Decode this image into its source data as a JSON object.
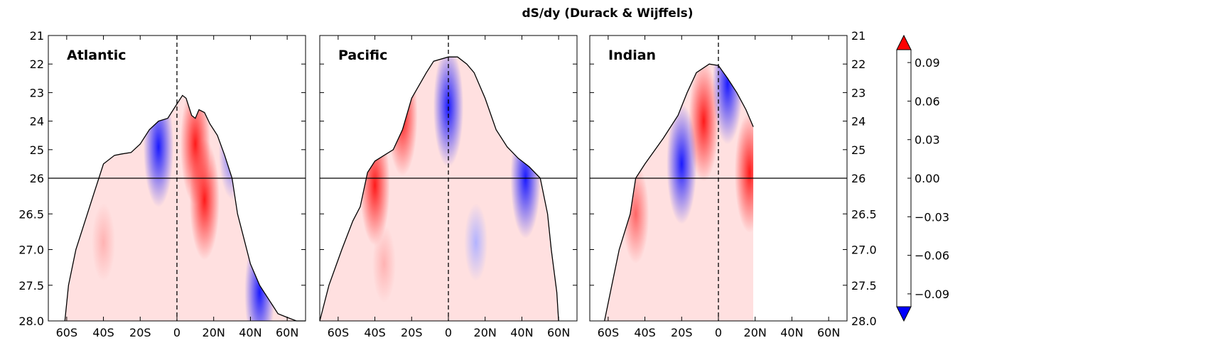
{
  "figure": {
    "title": "dS/dy (Durack & Wijffels)"
  },
  "chart_data": {
    "type": "heatmap",
    "title": "dS/dy (Durack & Wijffels)",
    "x_ticks": [
      "60S",
      "40S",
      "20S",
      "0",
      "20N",
      "40N",
      "60N"
    ],
    "x_tick_values": [
      -60,
      -40,
      -20,
      0,
      20,
      40,
      60
    ],
    "xlim": [
      -70,
      70
    ],
    "y_ticks": [
      "21",
      "22",
      "23",
      "24",
      "25",
      "26",
      "26.5",
      "27.0",
      "27.5",
      "28.0"
    ],
    "y_upper_range": [
      21,
      26
    ],
    "y_lower_range": [
      26,
      28
    ],
    "reference_line_y": 26,
    "reference_line_x": 0,
    "colorbar": {
      "ticks": [
        "0.09",
        "0.06",
        "0.03",
        "0.00",
        "−0.03",
        "−0.06",
        "−0.09"
      ],
      "tick_values": [
        0.09,
        0.06,
        0.03,
        0,
        -0.03,
        -0.06,
        -0.09
      ],
      "range": [
        -0.1,
        0.1
      ],
      "cmap": "bwr",
      "extend": "both"
    },
    "panels": [
      {
        "name": "Atlantic",
        "outcrop": [
          [
            -61,
            28.0
          ],
          [
            -59,
            27.5
          ],
          [
            -55,
            27.0
          ],
          [
            -50,
            26.6
          ],
          [
            -45,
            26.2
          ],
          [
            -40,
            25.5
          ],
          [
            -34,
            25.2
          ],
          [
            -30,
            25.15
          ],
          [
            -25,
            25.1
          ],
          [
            -20,
            24.8
          ],
          [
            -15,
            24.3
          ],
          [
            -10,
            24.0
          ],
          [
            -5,
            23.9
          ],
          [
            -1,
            23.5
          ],
          [
            3,
            23.1
          ],
          [
            5,
            23.2
          ],
          [
            8,
            23.8
          ],
          [
            10,
            23.9
          ],
          [
            12,
            23.6
          ],
          [
            15,
            23.7
          ],
          [
            18,
            24.1
          ],
          [
            22,
            24.5
          ],
          [
            26,
            25.2
          ],
          [
            30,
            26.0
          ],
          [
            33,
            26.5
          ],
          [
            36,
            26.8
          ],
          [
            40,
            27.2
          ],
          [
            45,
            27.5
          ],
          [
            50,
            27.7
          ],
          [
            55,
            27.9
          ],
          [
            60,
            27.95
          ],
          [
            65,
            28.0
          ],
          [
            70,
            28.0
          ]
        ],
        "features": [
          {
            "x": 10,
            "y": 24.8,
            "value": 0.09
          },
          {
            "x": 15,
            "y": 26.3,
            "value": 0.09
          },
          {
            "x": -10,
            "y": 24.9,
            "value": -0.09
          },
          {
            "x": 30,
            "y": 25.0,
            "value": -0.06
          },
          {
            "x": 45,
            "y": 27.6,
            "value": -0.09
          },
          {
            "x": -40,
            "y": 26.9,
            "value": 0.03
          }
        ]
      },
      {
        "name": "Pacific",
        "outcrop": [
          [
            -70,
            28.0
          ],
          [
            -65,
            27.5
          ],
          [
            -58,
            27.0
          ],
          [
            -52,
            26.6
          ],
          [
            -48,
            26.4
          ],
          [
            -44,
            25.8
          ],
          [
            -40,
            25.4
          ],
          [
            -35,
            25.2
          ],
          [
            -30,
            25.0
          ],
          [
            -25,
            24.3
          ],
          [
            -20,
            23.2
          ],
          [
            -12,
            22.3
          ],
          [
            -8,
            21.9
          ],
          [
            0,
            21.75
          ],
          [
            5,
            21.75
          ],
          [
            10,
            22.0
          ],
          [
            14,
            22.3
          ],
          [
            20,
            23.2
          ],
          [
            26,
            24.3
          ],
          [
            32,
            24.9
          ],
          [
            38,
            25.3
          ],
          [
            44,
            25.6
          ],
          [
            50,
            26.0
          ],
          [
            54,
            26.5
          ],
          [
            56,
            27.0
          ],
          [
            59,
            27.6
          ],
          [
            60,
            28.0
          ]
        ],
        "features": [
          {
            "x": -25,
            "y": 23.8,
            "value": 0.09
          },
          {
            "x": -40,
            "y": 26.1,
            "value": 0.09
          },
          {
            "x": 0,
            "y": 23.5,
            "value": -0.09
          },
          {
            "x": 42,
            "y": 26.0,
            "value": -0.09
          },
          {
            "x": 15,
            "y": 26.9,
            "value": -0.03
          },
          {
            "x": -35,
            "y": 27.2,
            "value": 0.03
          }
        ]
      },
      {
        "name": "Indian",
        "outcrop": [
          [
            -62,
            28.0
          ],
          [
            -58,
            27.5
          ],
          [
            -54,
            27.0
          ],
          [
            -48,
            26.5
          ],
          [
            -45,
            26.0
          ],
          [
            -40,
            25.5
          ],
          [
            -30,
            24.6
          ],
          [
            -22,
            23.8
          ],
          [
            -17,
            23.0
          ],
          [
            -12,
            22.3
          ],
          [
            -5,
            22.0
          ],
          [
            0,
            22.05
          ],
          [
            5,
            22.5
          ],
          [
            10,
            23.0
          ],
          [
            15,
            23.6
          ],
          [
            19,
            24.2
          ]
        ],
        "features": [
          {
            "x": -8,
            "y": 24.0,
            "value": 0.09
          },
          {
            "x": 17,
            "y": 25.8,
            "value": 0.09
          },
          {
            "x": -20,
            "y": 25.5,
            "value": -0.09
          },
          {
            "x": 5,
            "y": 22.7,
            "value": -0.09
          },
          {
            "x": -45,
            "y": 26.5,
            "value": 0.06
          }
        ]
      }
    ]
  }
}
